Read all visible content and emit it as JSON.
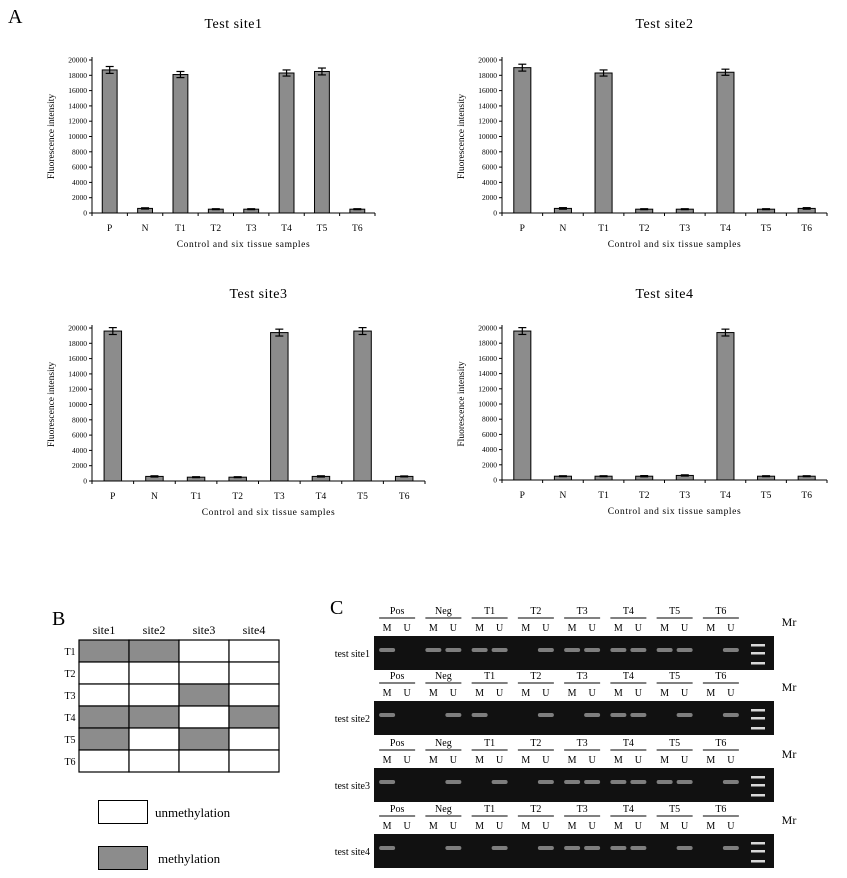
{
  "panel_labels": {
    "a": "A",
    "b": "B",
    "c": "C"
  },
  "colors": {
    "bar": "#8c8c8c",
    "bar_stroke": "#000000",
    "methylated_cell": "#8c8c8c",
    "gel_background": "#111111",
    "band": "#d8d8d8"
  },
  "chart_data": [
    {
      "type": "bar",
      "title": "Test site1",
      "xlabel": "Control and six tissue samples",
      "ylabel": "Fluorescence intensity",
      "ylim": [
        0,
        20000
      ],
      "yticks": [
        0,
        2000,
        4000,
        6000,
        8000,
        10000,
        12000,
        14000,
        16000,
        18000,
        20000
      ],
      "categories": [
        "P",
        "N",
        "T1",
        "T2",
        "T3",
        "T4",
        "T5",
        "T6"
      ],
      "values": [
        18700,
        600,
        18100,
        500,
        500,
        18300,
        18500,
        500
      ],
      "errors": [
        450,
        80,
        400,
        60,
        60,
        400,
        450,
        60
      ]
    },
    {
      "type": "bar",
      "title": "Test site2",
      "xlabel": "Control and six tissue samples",
      "ylabel": "Fluorescence intensity",
      "ylim": [
        0,
        20000
      ],
      "yticks": [
        0,
        2000,
        4000,
        6000,
        8000,
        10000,
        12000,
        14000,
        16000,
        18000,
        20000
      ],
      "categories": [
        "P",
        "N",
        "T1",
        "T2",
        "T3",
        "T4",
        "T5",
        "T6"
      ],
      "values": [
        19000,
        600,
        18300,
        500,
        500,
        18400,
        500,
        600
      ],
      "errors": [
        450,
        100,
        400,
        60,
        60,
        400,
        60,
        100
      ]
    },
    {
      "type": "bar",
      "title": "Test site3",
      "xlabel": "Control and six tissue samples",
      "ylabel": "Fluorescence intensity",
      "ylim": [
        0,
        20000
      ],
      "yticks": [
        0,
        2000,
        4000,
        6000,
        8000,
        10000,
        12000,
        14000,
        16000,
        18000,
        20000
      ],
      "categories": [
        "P",
        "N",
        "T1",
        "T2",
        "T3",
        "T4",
        "T5",
        "T6"
      ],
      "values": [
        19600,
        600,
        500,
        500,
        19400,
        600,
        19600,
        600
      ],
      "errors": [
        450,
        80,
        60,
        60,
        450,
        80,
        450,
        60
      ]
    },
    {
      "type": "bar",
      "title": "Test site4",
      "xlabel": "Control and six tissue samples",
      "ylabel": "Fluorescence intensity",
      "ylim": [
        0,
        20000
      ],
      "yticks": [
        0,
        2000,
        4000,
        6000,
        8000,
        10000,
        12000,
        14000,
        16000,
        18000,
        20000
      ],
      "categories": [
        "P",
        "N",
        "T1",
        "T2",
        "T3",
        "T4",
        "T5",
        "T6"
      ],
      "values": [
        19600,
        500,
        500,
        500,
        600,
        19400,
        500,
        500
      ],
      "errors": [
        450,
        60,
        60,
        80,
        80,
        450,
        60,
        60
      ]
    }
  ],
  "methylation_table": {
    "columns": [
      "site1",
      "site2",
      "site3",
      "site4"
    ],
    "rows": [
      {
        "label": "T1",
        "cells": [
          1,
          1,
          0,
          0
        ]
      },
      {
        "label": "T2",
        "cells": [
          0,
          0,
          0,
          0
        ]
      },
      {
        "label": "T3",
        "cells": [
          0,
          0,
          1,
          0
        ]
      },
      {
        "label": "T4",
        "cells": [
          1,
          1,
          0,
          1
        ]
      },
      {
        "label": "T5",
        "cells": [
          1,
          0,
          1,
          0
        ]
      },
      {
        "label": "T6",
        "cells": [
          0,
          0,
          0,
          0
        ]
      }
    ],
    "legend": [
      {
        "label": "unmethylation",
        "filled": false
      },
      {
        "label": "methylation",
        "filled": true
      }
    ]
  },
  "gels": {
    "groups": [
      "Pos",
      "Neg",
      "T1",
      "T2",
      "T3",
      "T4",
      "T5",
      "T6"
    ],
    "lane_labels": [
      "M",
      "U"
    ],
    "marker_label": "Mr",
    "rows": [
      {
        "label": "test site1",
        "bands": [
          1,
          0,
          1,
          1,
          1,
          1,
          0,
          1,
          1,
          1,
          1,
          1,
          1,
          1,
          0,
          1
        ]
      },
      {
        "label": "test site2",
        "bands": [
          1,
          0,
          0,
          1,
          1,
          0,
          0,
          1,
          0,
          1,
          1,
          1,
          0,
          1,
          0,
          1
        ]
      },
      {
        "label": "test site3",
        "bands": [
          1,
          0,
          0,
          1,
          0,
          1,
          0,
          1,
          1,
          1,
          1,
          1,
          1,
          1,
          0,
          1
        ]
      },
      {
        "label": "test site4",
        "bands": [
          1,
          0,
          0,
          1,
          0,
          1,
          0,
          1,
          1,
          1,
          1,
          1,
          0,
          1,
          0,
          1
        ]
      }
    ]
  }
}
